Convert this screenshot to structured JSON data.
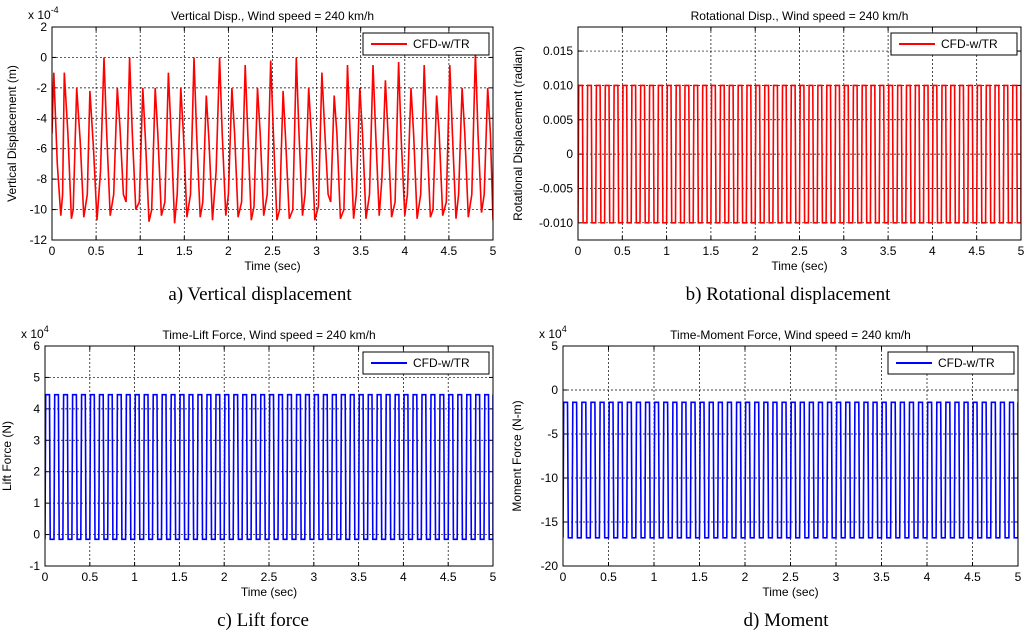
{
  "chart_data": [
    {
      "type": "line",
      "title": "Vertical Disp., Wind speed = 240 km/h",
      "xlabel": "Time (sec)",
      "ylabel": "Vertical Displacement (m)",
      "exponent": "-4",
      "xlim": [
        0,
        5
      ],
      "ylim": [
        -12,
        2
      ],
      "xticks": [
        "0",
        "0.5",
        "1",
        "1.5",
        "2",
        "2.5",
        "3",
        "3.5",
        "4",
        "4.5",
        "5"
      ],
      "yticks": [
        "-12",
        "-10",
        "-8",
        "-6",
        "-4",
        "-2",
        "0",
        "2"
      ],
      "grid": true,
      "legend_position": "top-right",
      "color": "#ff0000",
      "caption": "a) Vertical displacement",
      "series": [
        {
          "name": "CFD-w/TR",
          "x": [
            0.0,
            0.02,
            0.06,
            0.1,
            0.12,
            0.14,
            0.18,
            0.22,
            0.24,
            0.28,
            0.32,
            0.36,
            0.4,
            0.43,
            0.47,
            0.51,
            0.55,
            0.59,
            0.62,
            0.66,
            0.7,
            0.74,
            0.77,
            0.81,
            0.84,
            0.88,
            0.91,
            0.95,
            0.99,
            1.03,
            1.06,
            1.1,
            1.13,
            1.17,
            1.2,
            1.24,
            1.28,
            1.32,
            1.35,
            1.39,
            1.42,
            1.46,
            1.49,
            1.53,
            1.57,
            1.61,
            1.64,
            1.68,
            1.71,
            1.75,
            1.78,
            1.82,
            1.86,
            1.9,
            1.93,
            1.97,
            2.0,
            2.04,
            2.07,
            2.11,
            2.15,
            2.19,
            2.22,
            2.26,
            2.29,
            2.33,
            2.36,
            2.4,
            2.44,
            2.48,
            2.51,
            2.55,
            2.58,
            2.62,
            2.65,
            2.69,
            2.73,
            2.77,
            2.8,
            2.84,
            2.87,
            2.91,
            2.94,
            2.98,
            3.02,
            3.06,
            3.09,
            3.13,
            3.16,
            3.2,
            3.23,
            3.27,
            3.31,
            3.35,
            3.38,
            3.42,
            3.45,
            3.49,
            3.52,
            3.56,
            3.6,
            3.64,
            3.67,
            3.71,
            3.74,
            3.78,
            3.81,
            3.85,
            3.89,
            3.93,
            3.96,
            4.0,
            4.03,
            4.07,
            4.1,
            4.14,
            4.18,
            4.22,
            4.25,
            4.29,
            4.32,
            4.36,
            4.39,
            4.43,
            4.47,
            4.51,
            4.54,
            4.58,
            4.61,
            4.65,
            4.68,
            4.72,
            4.76,
            4.8,
            4.83,
            4.87,
            4.9,
            4.94,
            4.97,
            5.0
          ],
          "y": [
            -5.0,
            -1.0,
            -7.0,
            -10.4,
            -9.0,
            -1.0,
            -5.0,
            -10.6,
            -10.0,
            -2.0,
            -5.5,
            -10.5,
            -9.0,
            -2.2,
            -6.0,
            -10.7,
            -7.5,
            0.0,
            -5.0,
            -10.4,
            -9.0,
            -2.0,
            -4.5,
            -9.0,
            -9.5,
            0.0,
            -5.0,
            -10.0,
            -9.5,
            -2.0,
            -5.5,
            -10.8,
            -10.0,
            -2.0,
            -5.0,
            -10.4,
            -9.5,
            -1.0,
            -5.0,
            -10.9,
            -9.0,
            -2.0,
            -5.0,
            -10.5,
            -9.0,
            0.0,
            -5.0,
            -10.5,
            -9.5,
            -2.5,
            -5.5,
            -10.7,
            -7.5,
            0.0,
            -5.0,
            -10.4,
            -9.0,
            -2.0,
            -5.0,
            -10.5,
            -9.5,
            -0.5,
            -5.0,
            -10.7,
            -9.8,
            -2.0,
            -5.0,
            -10.4,
            -9.0,
            -0.2,
            -5.0,
            -10.7,
            -10.0,
            -2.2,
            -5.5,
            -10.6,
            -10.0,
            0.0,
            -5.0,
            -10.4,
            -9.0,
            -2.0,
            -5.0,
            -10.7,
            -9.8,
            -1.0,
            -4.5,
            -9.0,
            -9.5,
            -2.5,
            -5.0,
            -10.6,
            -10.0,
            -0.5,
            -5.0,
            -10.6,
            -9.0,
            -2.0,
            -5.0,
            -10.6,
            -9.0,
            -0.5,
            -5.0,
            -10.4,
            -8.0,
            -1.5,
            -5.0,
            -10.5,
            -9.5,
            -0.3,
            -5.5,
            -10.4,
            -9.0,
            -2.0,
            -5.0,
            -10.6,
            -9.0,
            -0.5,
            -5.0,
            -10.5,
            -10.0,
            -2.5,
            -5.0,
            -10.4,
            -9.5,
            -0.5,
            -5.0,
            -10.6,
            -9.0,
            -2.0,
            -5.0,
            -10.5,
            -9.0,
            0.3,
            -5.0,
            -10.2,
            -9.0,
            -2.0,
            -5.0,
            -10.7
          ]
        }
      ]
    },
    {
      "type": "line",
      "title": "Rotational Disp., Wind speed = 240 km/h",
      "xlabel": "Time (sec)",
      "ylabel": "Rotational Displacement (radian)",
      "xlim": [
        0,
        5
      ],
      "ylim": [
        -0.0125,
        0.0185
      ],
      "xticks": [
        "0",
        "0.5",
        "1",
        "1.5",
        "2",
        "2.5",
        "3",
        "3.5",
        "4",
        "4.5",
        "5"
      ],
      "ytick_values": [
        -0.01,
        -0.005,
        0,
        0.005,
        0.01,
        0.015
      ],
      "yticks": [
        "-0.010",
        "-0.005",
        "0",
        "0.005",
        "0.010",
        "0.015"
      ],
      "grid": true,
      "legend_position": "top-right",
      "color": "#ff0000",
      "caption": "b) Rotational displacement",
      "series": [
        {
          "name": "CFD-w/TR",
          "waveform": "square-like oscillation",
          "period_sec": 0.1,
          "min": -0.01,
          "max": 0.01,
          "x_start": 0,
          "x_end": 5
        }
      ]
    },
    {
      "type": "line",
      "title": "Time-Lift Force, Wind speed = 240 km/h",
      "xlabel": "Time (sec)",
      "ylabel": "Lift Force (N)",
      "exponent": "4",
      "xlim": [
        0,
        5
      ],
      "ylim": [
        -1,
        6
      ],
      "xticks": [
        "0",
        "0.5",
        "1",
        "1.5",
        "2",
        "2.5",
        "3",
        "3.5",
        "4",
        "4.5",
        "5"
      ],
      "yticks": [
        "-1",
        "0",
        "1",
        "2",
        "3",
        "4",
        "5",
        "6"
      ],
      "grid": true,
      "legend_position": "top-right",
      "color": "#0000ff",
      "caption": "c) Lift force",
      "series": [
        {
          "name": "CFD-w/TR",
          "waveform": "square-like oscillation",
          "period_sec": 0.1,
          "min": -0.15,
          "max": 4.45,
          "x_start": 0,
          "x_end": 5
        }
      ]
    },
    {
      "type": "line",
      "title": "Time-Moment Force, Wind speed = 240 km/h",
      "xlabel": "Time (sec)",
      "ylabel": "Moment Force (N-m)",
      "exponent": "4",
      "xlim": [
        0,
        5
      ],
      "ylim": [
        -20,
        5
      ],
      "xticks": [
        "0",
        "0.5",
        "1",
        "1.5",
        "2",
        "2.5",
        "3",
        "3.5",
        "4",
        "4.5",
        "5"
      ],
      "yticks": [
        "-20",
        "-15",
        "-10",
        "-5",
        "0",
        "5"
      ],
      "grid": true,
      "legend_position": "top-right",
      "color": "#0000ff",
      "caption": "d) Moment",
      "series": [
        {
          "name": "CFD-w/TR",
          "waveform": "square-like oscillation",
          "period_sec": 0.1,
          "min": -16.8,
          "max": -1.4,
          "x_start": 0,
          "x_end": 5
        }
      ]
    }
  ]
}
